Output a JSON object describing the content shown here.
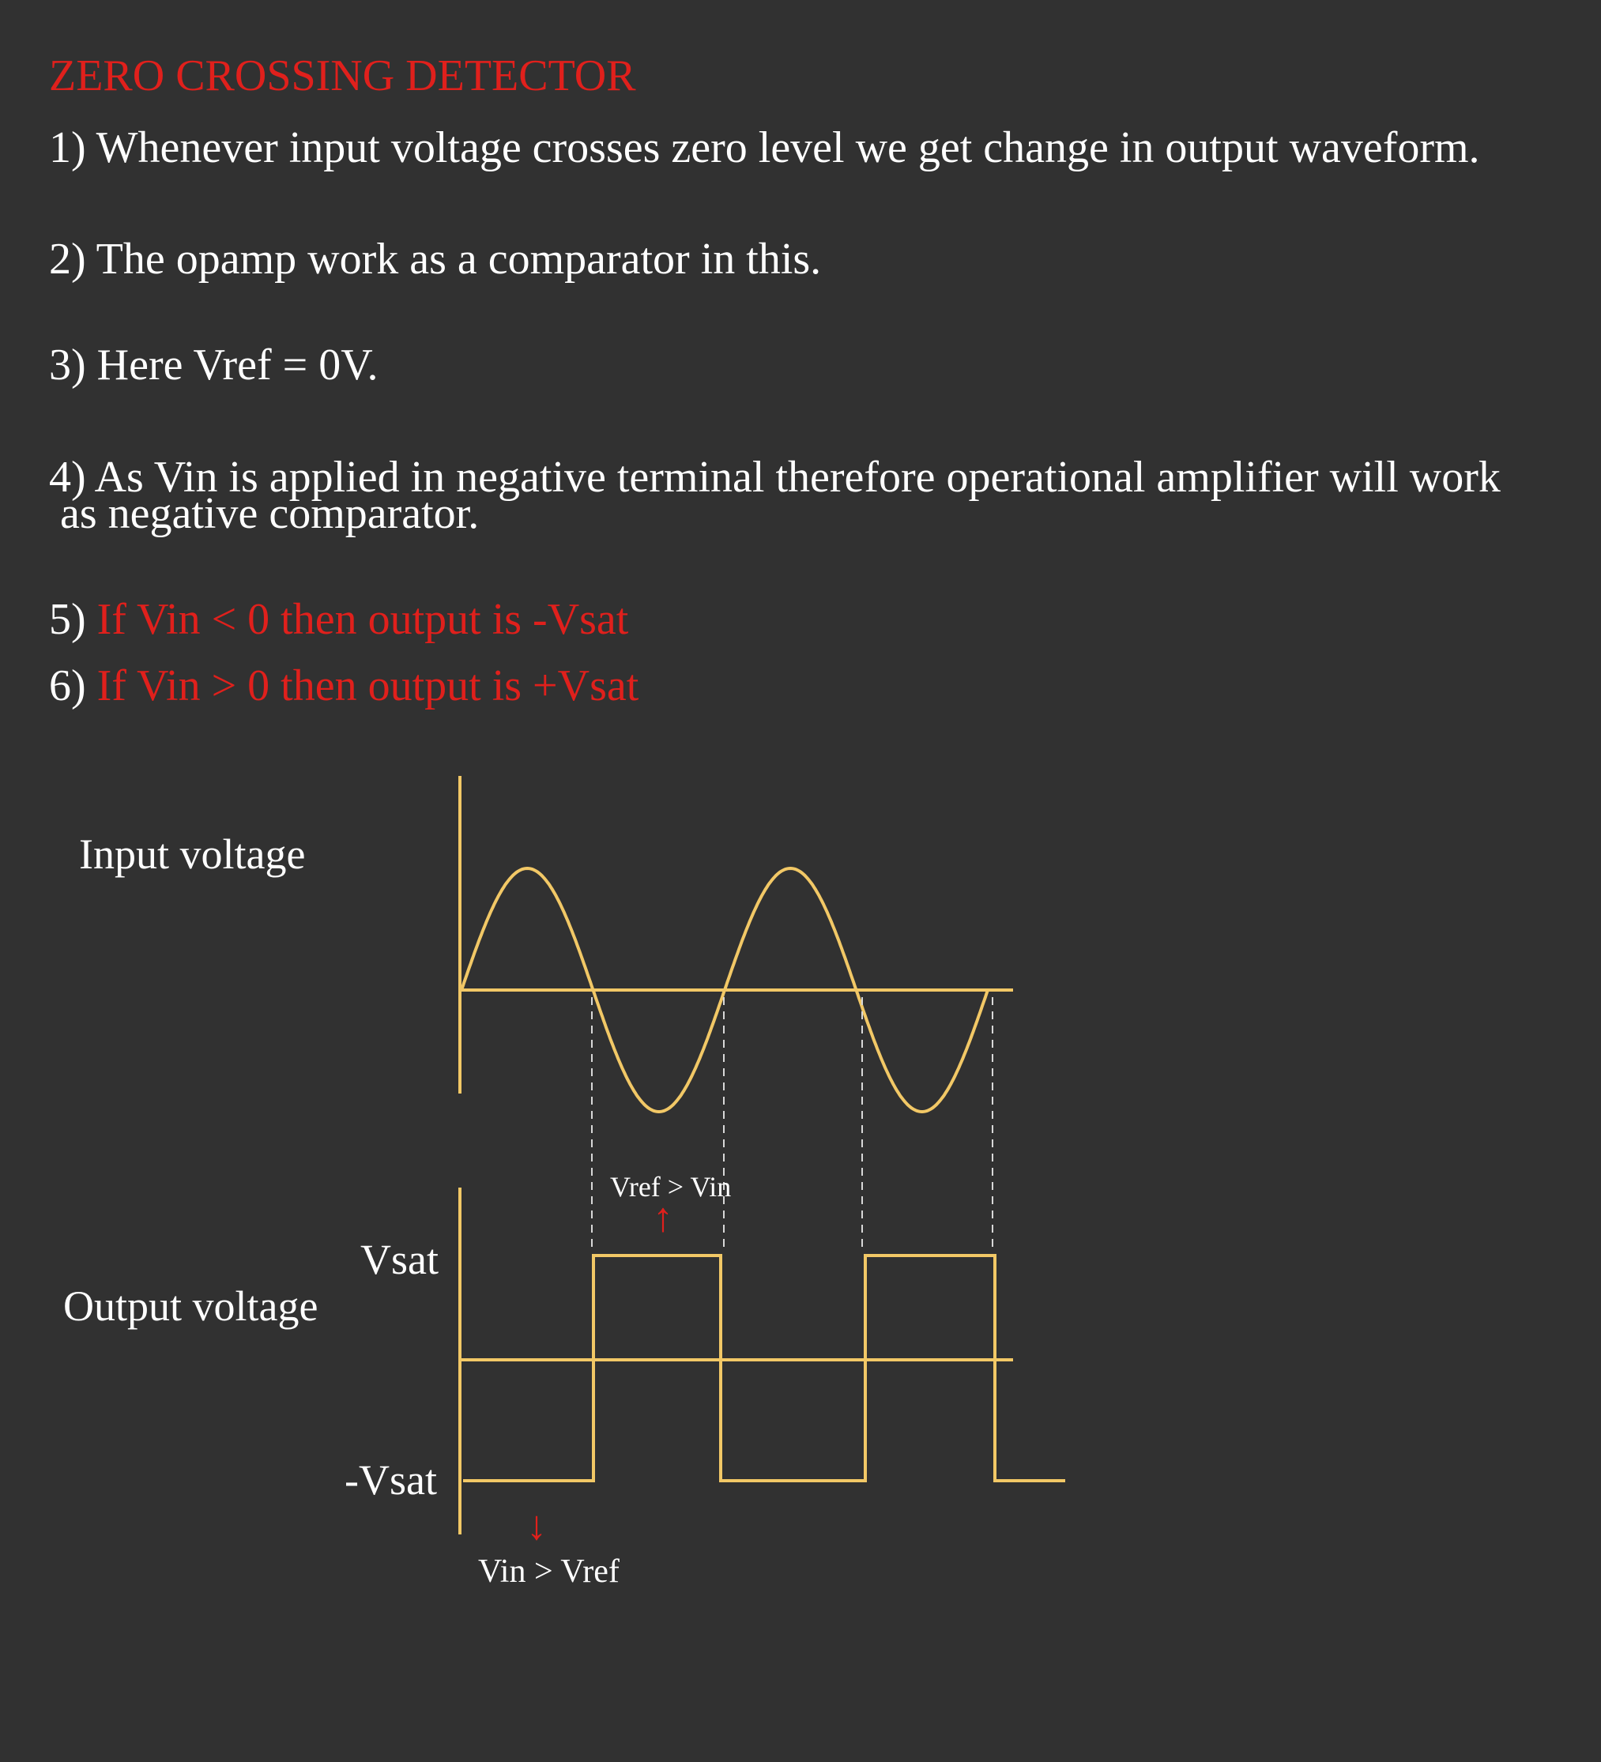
{
  "title": "ZERO CROSSING DETECTOR",
  "points": [
    {
      "num": "1)",
      "text": "Whenever input voltage crosses zero level we get change in output waveform."
    },
    {
      "num": "2)",
      "text": "The opamp work as a comparator in this."
    },
    {
      "num": "3)",
      "text": "Here Vref = 0V."
    },
    {
      "num": "4)",
      "text": "As Vin is applied in negative terminal therefore operational amplifier will work",
      "cont": "as  negative comparator."
    },
    {
      "num": "5)",
      "text": "If Vin < 0 then output is -Vsat"
    },
    {
      "num": "6)",
      "text": "If Vin > 0 then output is +Vsat"
    }
  ],
  "diagram": {
    "input_label": "Input voltage",
    "output_label": "Output voltage",
    "vsat_label": "Vsat",
    "neg_vsat_label": "-Vsat",
    "annotation_top": "Vref > Vin",
    "annotation_bottom": "Vin > Vref",
    "arrow_up": "↑",
    "arrow_down": "↓"
  },
  "colors": {
    "background": "#313131",
    "waveform": "#f2c866",
    "highlight": "#e0201c",
    "text": "#ffffff"
  }
}
